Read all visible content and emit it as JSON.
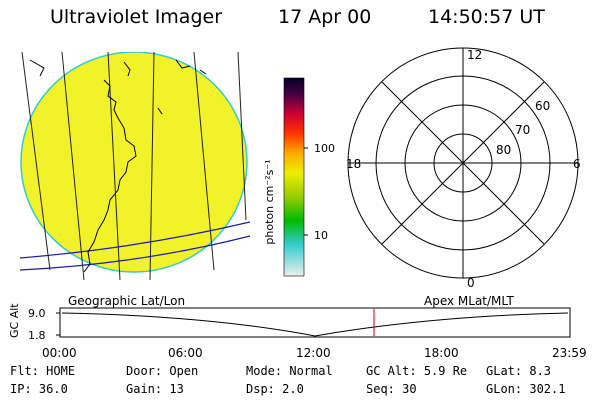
{
  "header": {
    "instrument": "Ultraviolet Imager",
    "date": "17 Apr 00",
    "time": "14:50:57 UT"
  },
  "colorbar": {
    "unit_label": "photon cm⁻²s⁻¹",
    "tick_labels": [
      "100",
      "10"
    ]
  },
  "polar_plot": {
    "mlt_labels": [
      "12",
      "18",
      "6",
      "0"
    ],
    "lat_labels": [
      "60",
      "70",
      "80"
    ]
  },
  "timeline": {
    "left_caption": "Geographic Lat/Lon",
    "right_caption": "Apex MLat/MLT",
    "y_axis_label": "GC Alt",
    "y_ticks": [
      "9.0",
      "1.8"
    ],
    "x_ticks": [
      "00:00",
      "06:00",
      "12:00",
      "18:00",
      "23:59"
    ],
    "curve_color": "#000000",
    "marker_color": "#cc0000"
  },
  "status": {
    "row1": [
      {
        "label": "Flt:",
        "value": "HOME"
      },
      {
        "label": "Door:",
        "value": "Open"
      },
      {
        "label": "Mode:",
        "value": "Normal"
      },
      {
        "label": "GC Alt:",
        "value": "5.9 Re"
      },
      {
        "label": "GLat:",
        "value": "8.3"
      }
    ],
    "row2": [
      {
        "label": "IP:",
        "value": "36.0"
      },
      {
        "label": "Gain:",
        "value": "13"
      },
      {
        "label": "Dsp:",
        "value": "2.0"
      },
      {
        "label": "Seq:",
        "value": "30"
      },
      {
        "label": "GLon:",
        "value": "302.1"
      }
    ]
  },
  "colors": {
    "earth_disk": "#f2f22a",
    "disk_rim": "#33cccc",
    "grid_line": "#1a1aaa"
  }
}
